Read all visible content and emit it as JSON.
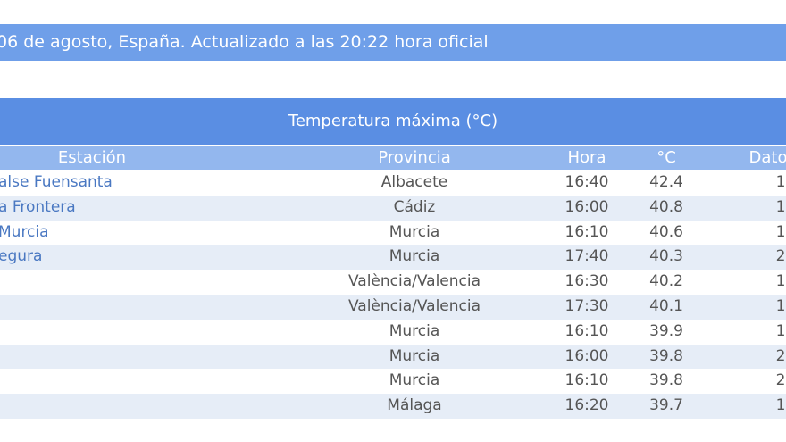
{
  "header": {
    "text": "06 de agosto, España. Actualizado a las 20:22 hora oficial"
  },
  "table": {
    "title": "Temperatura máxima (°C)",
    "columns": [
      "Estación",
      "Provincia",
      "Hora",
      "°C",
      "Dato"
    ],
    "rows": [
      [
        "alse Fuensanta",
        "Albacete",
        "16:40",
        42.4,
        1
      ],
      [
        "a Frontera",
        "Cádiz",
        "16:00",
        40.8,
        1
      ],
      [
        "Murcia",
        "Murcia",
        "16:10",
        40.6,
        1
      ],
      [
        "egura",
        "Murcia",
        "17:40",
        40.3,
        2
      ],
      [
        null,
        "València/Valencia",
        "16:30",
        40.2,
        1
      ],
      [
        null,
        "València/Valencia",
        "17:30",
        40.1,
        1
      ],
      [
        null,
        "Murcia",
        "16:10",
        39.9,
        1
      ],
      [
        null,
        "Murcia",
        "16:00",
        39.8,
        2
      ],
      [
        null,
        "Murcia",
        "16:10",
        39.8,
        2
      ],
      [
        null,
        "Málaga",
        "16:20",
        39.7,
        1
      ]
    ]
  }
}
